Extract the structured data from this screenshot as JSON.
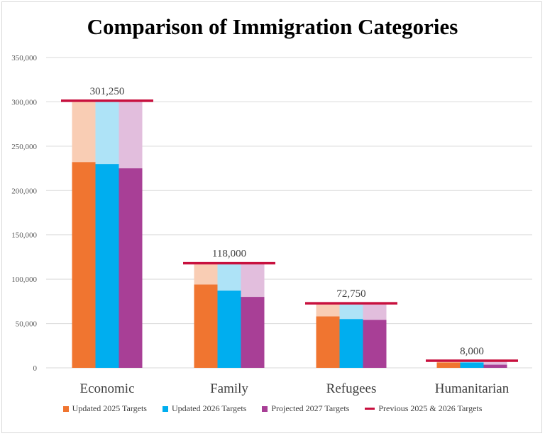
{
  "chart_data": {
    "type": "bar",
    "title": "Comparison of Immigration Categories",
    "categories": [
      "Economic",
      "Family",
      "Refugees",
      "Humanitarian"
    ],
    "series": [
      {
        "name": "Updated 2025 Targets",
        "color": "#F07530",
        "light_color": "#F9CDB4",
        "values": [
          232000,
          94000,
          58000,
          6000
        ]
      },
      {
        "name": "Updated 2026 Targets",
        "color": "#00AEEF",
        "light_color": "#AEE3F7",
        "values": [
          229750,
          87000,
          55000,
          6000
        ]
      },
      {
        "name": "Projected 2027 Targets",
        "color": "#A83F96",
        "light_color": "#E2BEDD",
        "values": [
          225000,
          80000,
          54000,
          3500
        ]
      }
    ],
    "previous_targets": {
      "name": "Previous 2025 & 2026 Targets",
      "color": "#C8103E",
      "values": [
        301250,
        118000,
        72750,
        8000
      ],
      "labels": [
        "301,250",
        "118,000",
        "72,750",
        "8,000"
      ]
    },
    "ylim": [
      0,
      350000
    ],
    "yticks": [
      "0",
      "50,000",
      "100,000",
      "150,000",
      "200,000",
      "250,000",
      "300,000",
      "350,000"
    ],
    "grid": true,
    "legend": "bottom",
    "xlabel": "",
    "ylabel": ""
  }
}
